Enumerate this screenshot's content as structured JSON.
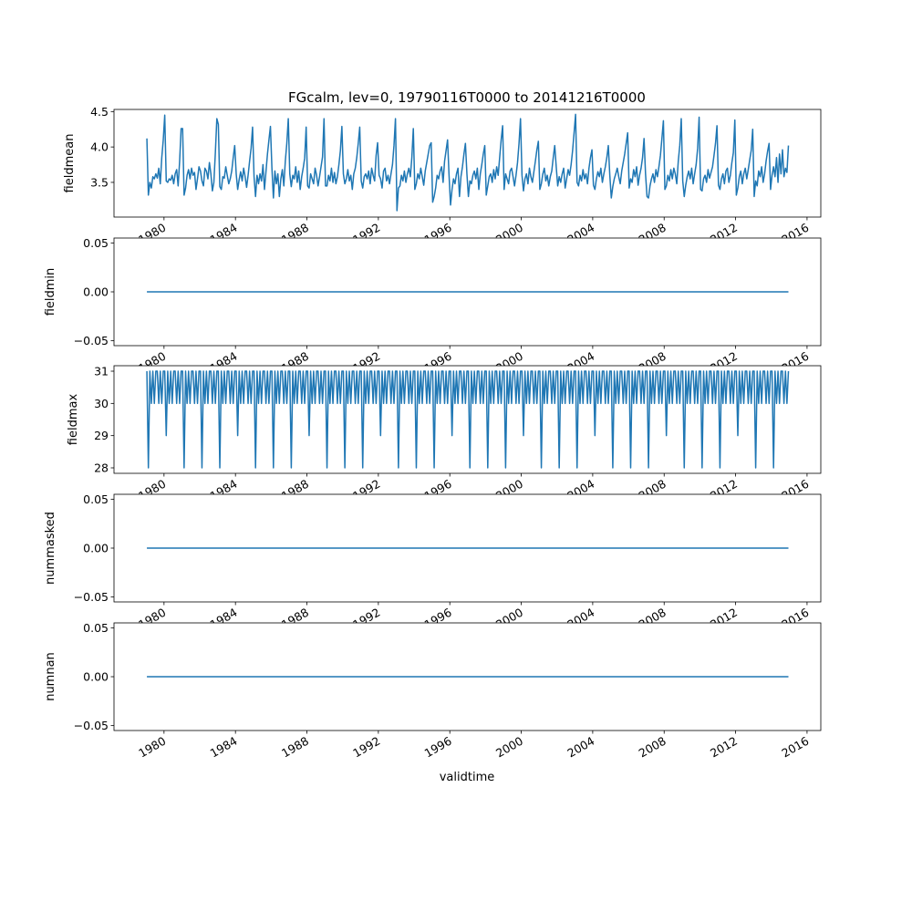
{
  "chart_data": {
    "type": "line",
    "title": "FGcalm, lev=0, 19790116T0000 to 20141216T0000",
    "xlabel": "validtime",
    "x_start": "1979-01-16",
    "x_end": "2014-12-16",
    "x_frequency": "monthly",
    "xlim": [
      1977.2,
      2016.77
    ],
    "xticks": [
      1980,
      1984,
      1988,
      1992,
      1996,
      2000,
      2004,
      2008,
      2012,
      2016
    ],
    "xtick_labels": [
      "1980",
      "1984",
      "1988",
      "1992",
      "1996",
      "2000",
      "2004",
      "2008",
      "2012",
      "2016"
    ],
    "line_color": "#1f77b4",
    "panels": [
      {
        "ylabel": "fieldmean",
        "ylim": [
          3.01,
          4.53
        ],
        "yticks": [
          3.5,
          4.0,
          4.5
        ],
        "ytick_labels": [
          "3.5",
          "4.0",
          "4.5"
        ],
        "values": [
          4.12,
          3.32,
          3.5,
          3.42,
          3.58,
          3.55,
          3.62,
          3.56,
          3.7,
          3.48,
          3.85,
          4.1,
          4.45,
          3.52,
          3.5,
          3.55,
          3.53,
          3.6,
          3.48,
          3.62,
          3.68,
          3.45,
          3.8,
          4.26,
          4.26,
          3.32,
          3.42,
          3.6,
          3.68,
          3.55,
          3.7,
          3.6,
          3.64,
          3.4,
          3.55,
          3.72,
          3.66,
          3.52,
          3.45,
          3.7,
          3.66,
          3.55,
          3.78,
          3.62,
          3.38,
          3.5,
          3.92,
          4.4,
          4.32,
          3.44,
          3.4,
          3.58,
          3.56,
          3.72,
          3.6,
          3.48,
          3.55,
          3.66,
          3.85,
          4.02,
          3.62,
          3.4,
          3.54,
          3.65,
          3.52,
          3.7,
          3.58,
          3.43,
          3.6,
          3.8,
          3.98,
          4.28,
          3.58,
          3.3,
          3.6,
          3.48,
          3.62,
          3.52,
          3.75,
          3.4,
          3.65,
          3.9,
          4.1,
          4.29,
          3.7,
          3.28,
          3.66,
          3.48,
          3.62,
          3.3,
          3.55,
          3.68,
          3.45,
          3.8,
          4.05,
          4.4,
          3.62,
          3.44,
          3.6,
          3.55,
          3.72,
          3.5,
          3.66,
          3.4,
          3.58,
          3.7,
          3.84,
          4.28,
          3.45,
          3.42,
          3.62,
          3.55,
          3.48,
          3.7,
          3.6,
          3.45,
          3.58,
          3.72,
          3.86,
          4.4,
          3.45,
          3.45,
          3.6,
          3.52,
          3.7,
          3.5,
          3.64,
          3.48,
          3.58,
          3.75,
          3.95,
          4.29,
          3.62,
          3.48,
          3.55,
          3.68,
          3.52,
          3.6,
          3.4,
          3.62,
          3.7,
          3.85,
          4.05,
          4.28,
          3.52,
          3.42,
          3.58,
          3.62,
          3.55,
          3.66,
          3.48,
          3.7,
          3.6,
          3.52,
          3.88,
          4.06,
          3.6,
          3.55,
          3.42,
          3.66,
          3.7,
          3.52,
          3.6,
          3.48,
          3.62,
          3.75,
          4.02,
          4.4,
          3.1,
          3.42,
          3.45,
          3.6,
          3.52,
          3.66,
          3.5,
          3.62,
          3.7,
          3.58,
          3.85,
          4.26,
          3.4,
          3.48,
          3.62,
          3.55,
          3.7,
          3.58,
          3.46,
          3.66,
          3.78,
          3.9,
          4.02,
          4.06,
          3.22,
          3.3,
          3.42,
          3.6,
          3.55,
          3.66,
          3.72,
          3.5,
          3.8,
          3.95,
          4.1,
          3.6,
          3.18,
          3.4,
          3.55,
          3.48,
          3.62,
          3.7,
          3.3,
          3.58,
          3.72,
          3.9,
          4.05,
          3.62,
          3.3,
          3.52,
          3.48,
          3.6,
          3.66,
          3.55,
          3.7,
          3.4,
          3.62,
          3.75,
          3.9,
          4.02,
          3.32,
          3.45,
          3.58,
          3.62,
          3.5,
          3.68,
          3.55,
          3.72,
          3.6,
          3.85,
          4.1,
          4.3,
          3.4,
          3.62,
          3.55,
          3.48,
          3.66,
          3.7,
          3.58,
          3.45,
          3.6,
          3.78,
          4.05,
          4.4,
          3.6,
          3.38,
          3.55,
          3.62,
          3.48,
          3.7,
          3.58,
          3.5,
          3.65,
          3.8,
          3.96,
          4.08,
          3.4,
          3.48,
          3.62,
          3.7,
          3.52,
          3.6,
          3.45,
          3.58,
          3.66,
          3.85,
          4.02,
          3.72,
          3.45,
          3.58,
          3.5,
          3.62,
          3.7,
          3.42,
          3.55,
          3.68,
          3.6,
          3.75,
          3.95,
          4.2,
          4.46,
          3.5,
          3.45,
          3.6,
          3.52,
          3.68,
          3.55,
          3.62,
          3.48,
          3.7,
          3.85,
          3.96,
          3.46,
          3.4,
          3.55,
          3.65,
          3.58,
          3.7,
          3.5,
          3.62,
          3.72,
          3.85,
          4.02,
          3.6,
          3.28,
          3.44,
          3.55,
          3.62,
          3.7,
          3.58,
          3.48,
          3.66,
          3.78,
          3.9,
          4.05,
          4.2,
          3.42,
          3.55,
          3.5,
          3.68,
          3.58,
          3.72,
          3.46,
          3.6,
          3.7,
          3.85,
          4.12,
          3.62,
          3.3,
          3.28,
          3.45,
          3.55,
          3.62,
          3.5,
          3.68,
          3.58,
          3.72,
          3.88,
          4.12,
          4.37,
          3.4,
          3.45,
          3.6,
          3.52,
          3.68,
          3.55,
          3.7,
          3.62,
          3.48,
          3.8,
          4.02,
          4.4,
          3.52,
          3.3,
          3.46,
          3.58,
          3.66,
          3.55,
          3.7,
          3.48,
          3.62,
          3.75,
          3.98,
          4.42,
          3.4,
          3.38,
          3.55,
          3.6,
          3.5,
          3.68,
          3.56,
          3.64,
          3.72,
          3.88,
          4.05,
          4.3,
          3.46,
          3.4,
          3.55,
          3.62,
          3.48,
          3.66,
          3.7,
          3.5,
          3.6,
          3.78,
          3.92,
          4.38,
          3.32,
          3.42,
          3.58,
          3.66,
          3.48,
          3.62,
          3.7,
          3.55,
          3.68,
          3.82,
          3.95,
          4.25,
          3.3,
          3.52,
          3.45,
          3.66,
          3.58,
          3.72,
          3.5,
          3.62,
          3.8,
          3.94,
          4.05,
          3.4,
          3.6,
          3.72,
          3.58,
          3.85,
          3.5,
          3.9,
          3.62,
          3.96,
          3.58,
          3.7,
          3.64,
          4.02
        ]
      },
      {
        "ylabel": "fieldmin",
        "ylim": [
          -0.055,
          0.055
        ],
        "yticks": [
          -0.05,
          0.0,
          0.05
        ],
        "ytick_labels": [
          "−0.05",
          "0.00",
          "0.05"
        ],
        "constant_value": 0
      },
      {
        "ylabel": "fieldmax",
        "ylim": [
          27.83,
          31.17
        ],
        "yticks": [
          28,
          29,
          30,
          31
        ],
        "ytick_labels": [
          "28",
          "29",
          "30",
          "31"
        ],
        "values": [
          31,
          28,
          31,
          30,
          31,
          30,
          31,
          31,
          30,
          31,
          30,
          31,
          31,
          29,
          31,
          30,
          31,
          30,
          31,
          31,
          30,
          31,
          30,
          31,
          31,
          28,
          31,
          30,
          31,
          30,
          31,
          31,
          30,
          31,
          30,
          31,
          31,
          28,
          31,
          30,
          31,
          30,
          31,
          31,
          30,
          31,
          30,
          31,
          31,
          28,
          31,
          30,
          31,
          30,
          31,
          31,
          30,
          31,
          30,
          31,
          31,
          29,
          31,
          30,
          31,
          30,
          31,
          31,
          30,
          31,
          30,
          31,
          31,
          28,
          31,
          30,
          31,
          30,
          31,
          31,
          30,
          31,
          30,
          31,
          31,
          28,
          31,
          30,
          31,
          30,
          31,
          31,
          30,
          31,
          30,
          31,
          31,
          28,
          31,
          30,
          31,
          30,
          31,
          31,
          30,
          31,
          30,
          31,
          31,
          29,
          31,
          30,
          31,
          30,
          31,
          31,
          30,
          31,
          30,
          31,
          31,
          28,
          31,
          30,
          31,
          30,
          31,
          31,
          30,
          31,
          30,
          31,
          31,
          28,
          31,
          30,
          31,
          30,
          31,
          31,
          30,
          31,
          30,
          31,
          31,
          28,
          31,
          30,
          31,
          30,
          31,
          31,
          30,
          31,
          30,
          31,
          31,
          29,
          31,
          30,
          31,
          30,
          31,
          31,
          30,
          31,
          30,
          31,
          31,
          28,
          31,
          30,
          31,
          30,
          31,
          31,
          30,
          31,
          30,
          31,
          31,
          28,
          31,
          30,
          31,
          30,
          31,
          31,
          30,
          31,
          30,
          31,
          31,
          28,
          31,
          30,
          31,
          30,
          31,
          31,
          30,
          31,
          30,
          31,
          31,
          29,
          31,
          30,
          31,
          30,
          31,
          31,
          30,
          31,
          30,
          31,
          31,
          28,
          31,
          30,
          31,
          30,
          31,
          31,
          30,
          31,
          30,
          31,
          31,
          28,
          31,
          30,
          31,
          30,
          31,
          31,
          30,
          31,
          30,
          31,
          31,
          28,
          31,
          30,
          31,
          30,
          31,
          31,
          30,
          31,
          30,
          31,
          31,
          29,
          31,
          30,
          31,
          30,
          31,
          31,
          30,
          31,
          30,
          31,
          31,
          28,
          31,
          30,
          31,
          30,
          31,
          31,
          30,
          31,
          30,
          31,
          31,
          28,
          31,
          30,
          31,
          30,
          31,
          31,
          30,
          31,
          30,
          31,
          31,
          28,
          31,
          30,
          31,
          30,
          31,
          31,
          30,
          31,
          30,
          31,
          31,
          29,
          31,
          30,
          31,
          30,
          31,
          31,
          30,
          31,
          30,
          31,
          31,
          28,
          31,
          30,
          31,
          30,
          31,
          31,
          30,
          31,
          30,
          31,
          31,
          28,
          31,
          30,
          31,
          30,
          31,
          31,
          30,
          31,
          30,
          31,
          31,
          28,
          31,
          30,
          31,
          30,
          31,
          31,
          30,
          31,
          30,
          31,
          31,
          29,
          31,
          30,
          31,
          30,
          31,
          31,
          30,
          31,
          30,
          31,
          31,
          28,
          31,
          30,
          31,
          30,
          31,
          31,
          30,
          31,
          30,
          31,
          31,
          28,
          31,
          30,
          31,
          30,
          31,
          31,
          30,
          31,
          30,
          31,
          31,
          28,
          31,
          30,
          31,
          30,
          31,
          31,
          30,
          31,
          30,
          31,
          31,
          29,
          31,
          30,
          31,
          30,
          31,
          31,
          30,
          31,
          30,
          31,
          31,
          28,
          31,
          30,
          31,
          30,
          31,
          31,
          30,
          31,
          30,
          31,
          31,
          28,
          31,
          30,
          31,
          30,
          31,
          31,
          30,
          31,
          30,
          31
        ]
      },
      {
        "ylabel": "nummasked",
        "ylim": [
          -0.055,
          0.055
        ],
        "yticks": [
          -0.05,
          0.0,
          0.05
        ],
        "ytick_labels": [
          "−0.05",
          "0.00",
          "0.05"
        ],
        "constant_value": 0
      },
      {
        "ylabel": "numnan",
        "ylim": [
          -0.055,
          0.055
        ],
        "yticks": [
          -0.05,
          0.0,
          0.05
        ],
        "ytick_labels": [
          "−0.05",
          "0.00",
          "0.05"
        ],
        "constant_value": 0
      }
    ]
  }
}
